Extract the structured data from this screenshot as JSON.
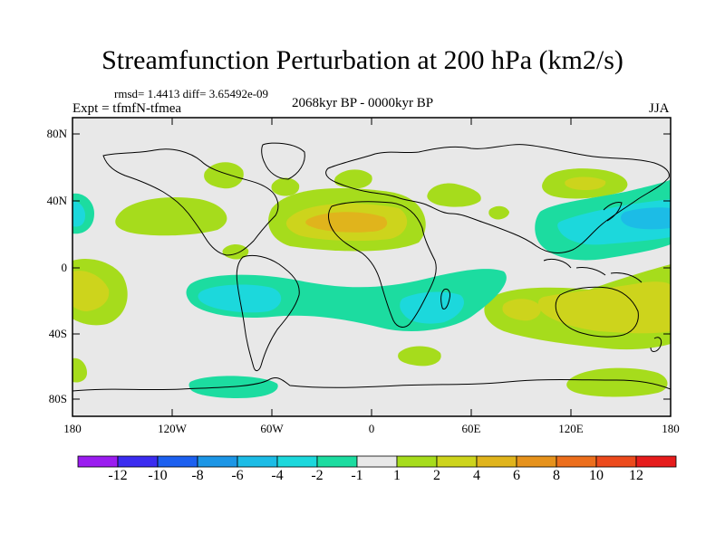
{
  "title": "Streamfunction Perturbation at 200 hPa (km2/s)",
  "stats": {
    "rmsd": "1.4413",
    "diff": "3.65492e-09",
    "text": "rmsd= 1.4413 diff= 3.65492e-09"
  },
  "experiment": "Expt = tfmfN-tfmea",
  "period": "2068kyr BP - 0000kyr BP",
  "season": "JJA",
  "axes": {
    "y_ticks": [
      "80N",
      "40N",
      "0",
      "40S",
      "80S"
    ],
    "x_ticks": [
      "180",
      "120W",
      "60W",
      "0",
      "60E",
      "120E",
      "180"
    ]
  },
  "colorbar": {
    "labels": [
      "-12",
      "-10",
      "-8",
      "-6",
      "-4",
      "-2",
      "-1",
      "1",
      "2",
      "4",
      "6",
      "8",
      "10",
      "12"
    ],
    "colors": [
      "#9b1cf0",
      "#3b2cf0",
      "#1c60f0",
      "#1c96e6",
      "#1cbce6",
      "#1cd8dc",
      "#1cdca0",
      "#e8e8e8",
      "#a6dc1c",
      "#cdd41c",
      "#e0b41c",
      "#e6921c",
      "#ec6e1c",
      "#ec4a1c",
      "#e61c1c"
    ]
  },
  "field_colors": {
    "neutral": "#e8e8e8",
    "pos_light": "#a6dc1c",
    "pos_mid": "#cdd41c",
    "pos_high": "#e0b41c",
    "neg_light": "#1cdca0",
    "neg_mid": "#1cd8dc",
    "neg_high": "#1cbce6"
  }
}
